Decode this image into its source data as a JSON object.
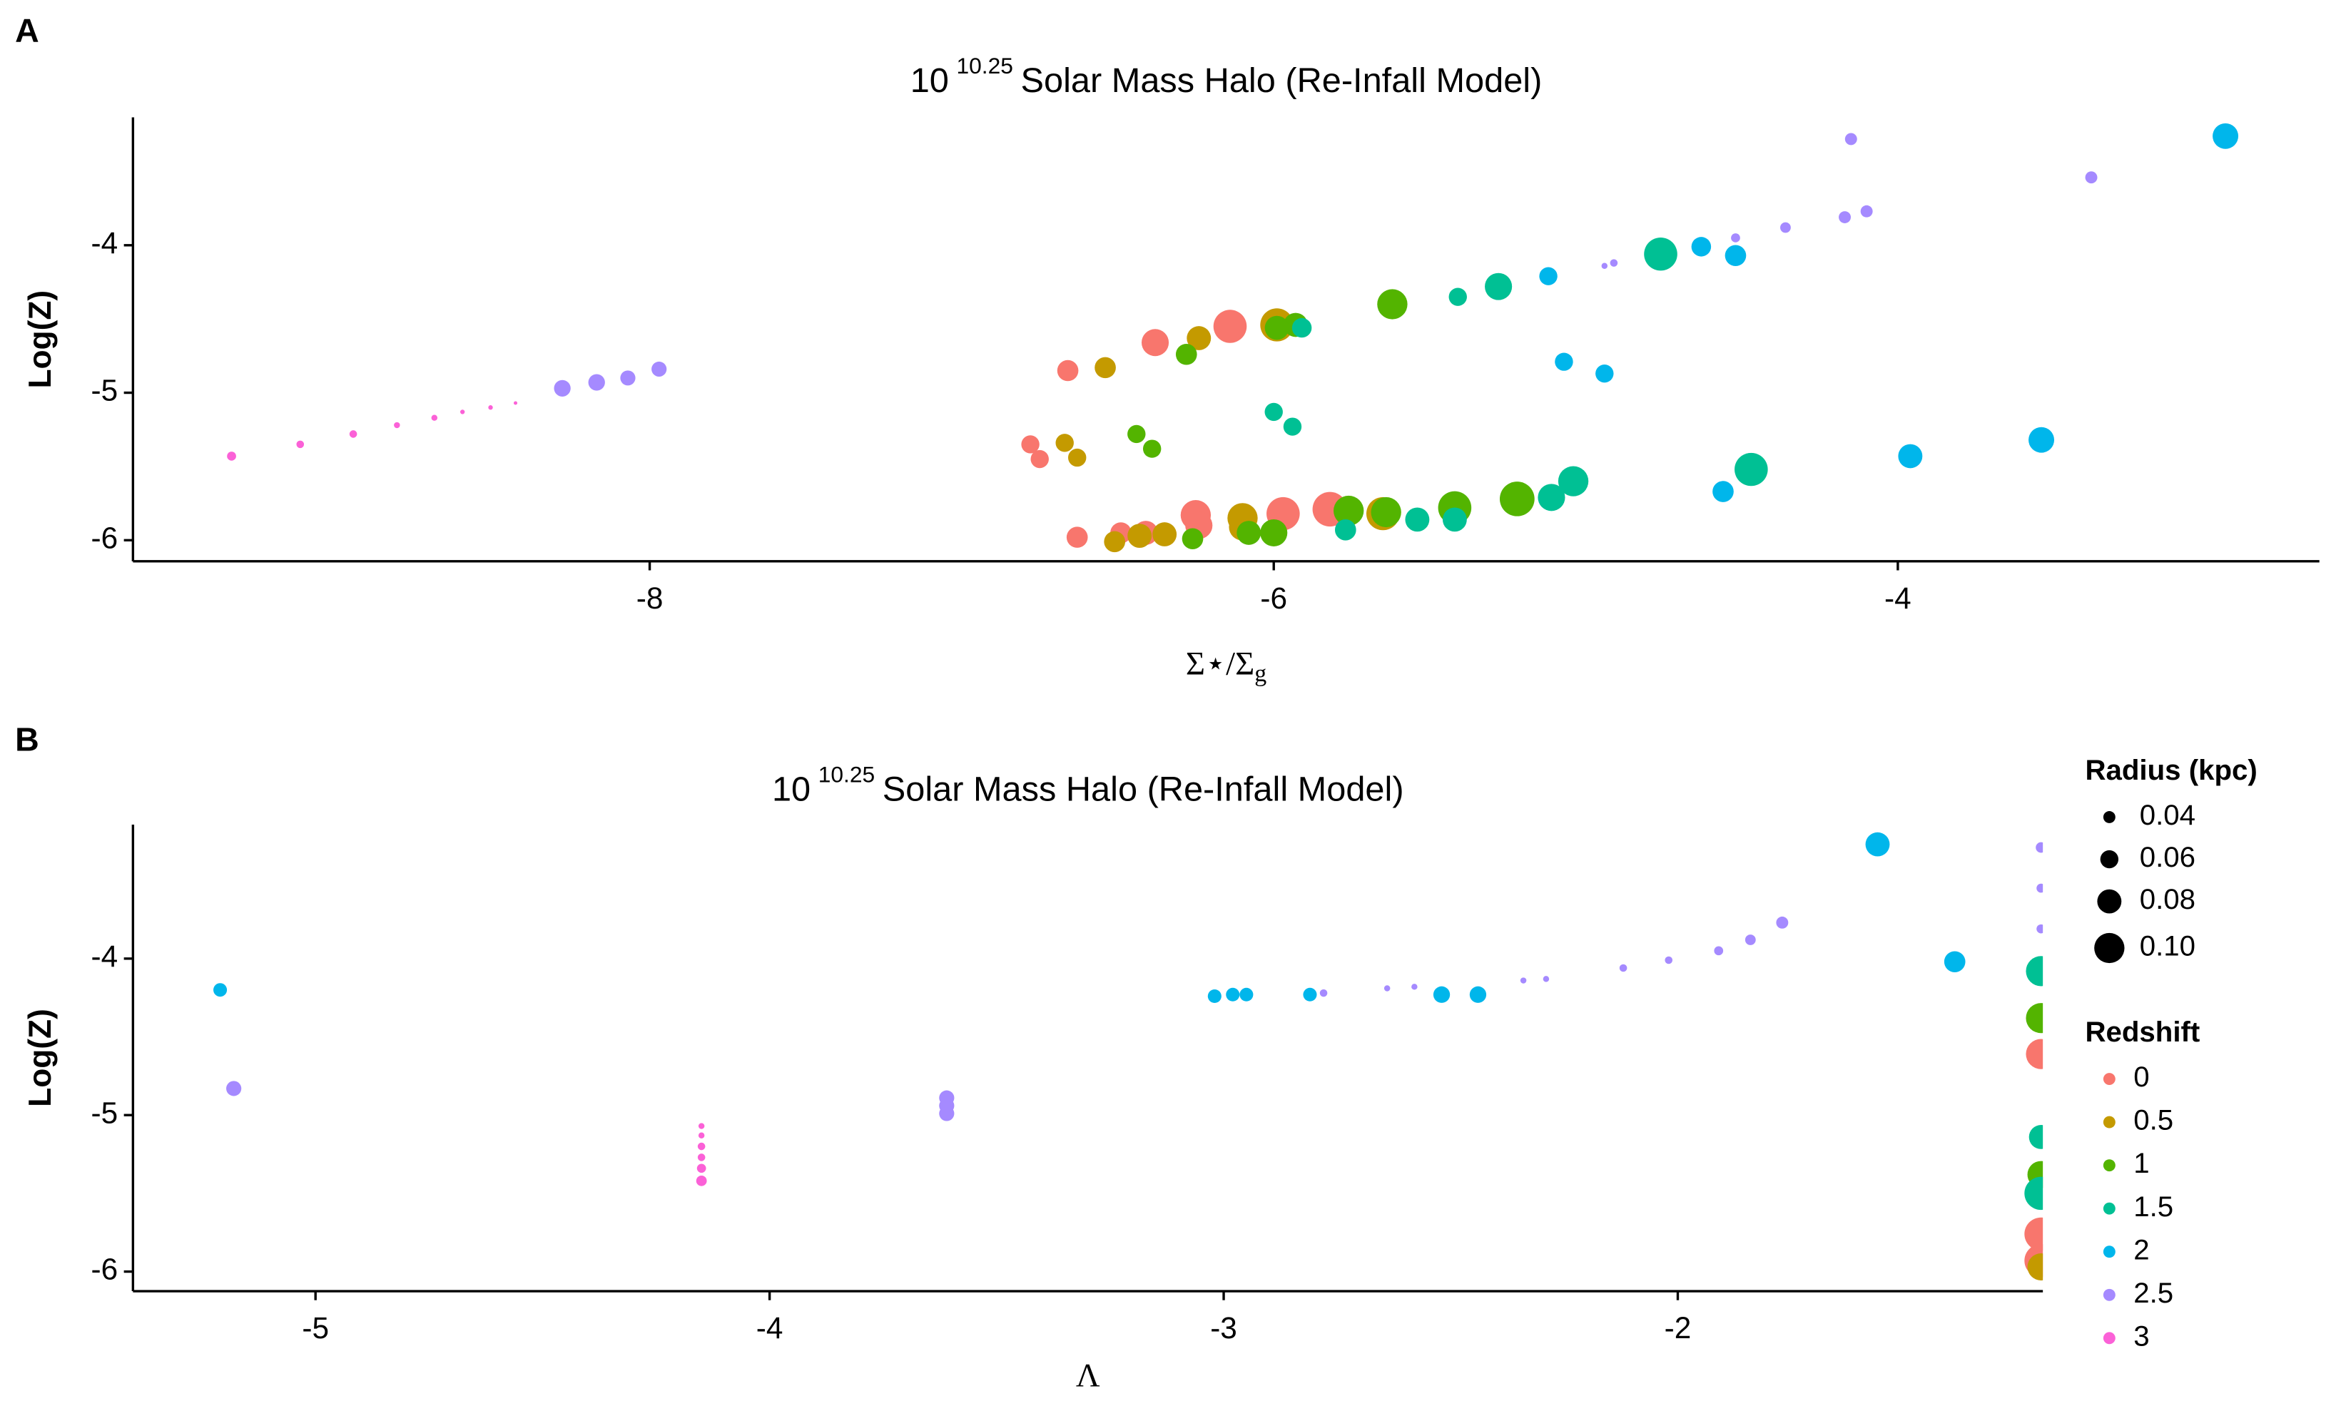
{
  "panel_labels": [
    "A",
    "B"
  ],
  "legend": {
    "size_title": "Radius (kpc)",
    "sizes": [
      0.04,
      0.06,
      0.08,
      {
        "value": 0.1,
        "label": "0.10"
      }
    ],
    "color_title": "Redshift"
  },
  "chart_data": [
    {
      "type": "scatter",
      "title_base": "10",
      "title_exponent": "10.25",
      "title": "Solar Mass Halo (Re-Infall Model)",
      "xlabel": "Σ⋆/Σ",
      "xlabel_subscript": "g",
      "ylabel": "Log(Z)",
      "xlim": [
        -9.656,
        -2.649
      ],
      "ylim": [
        -6.143,
        -3.133
      ],
      "xticks": [
        -8,
        -6,
        -4
      ],
      "yticks": [
        -4,
        -5,
        -6
      ],
      "series": [
        {
          "name": "0",
          "color": "#F8766D",
          "x": [
            -6.14,
            -6.38,
            -6.66,
            -6.78,
            -6.75,
            -5.82,
            -5.97,
            -6.25,
            -6.24,
            -6.41,
            -6.49,
            -6.63
          ],
          "y": [
            -4.55,
            -4.66,
            -4.85,
            -5.35,
            -5.45,
            -5.79,
            -5.82,
            -5.83,
            -5.9,
            -5.95,
            -5.95,
            -5.98
          ],
          "sizes": [
            0.11,
            0.09,
            0.07,
            0.06,
            0.06,
            0.115,
            0.11,
            0.1,
            0.09,
            0.08,
            0.07,
            0.07
          ]
        },
        {
          "name": "0.5",
          "color": "#C49A00",
          "x": [
            -5.99,
            -6.24,
            -6.54,
            -6.67,
            -6.63,
            -5.65,
            -6.1,
            -6.1,
            -6.35,
            -6.43,
            -6.51
          ],
          "y": [
            -4.54,
            -4.63,
            -4.83,
            -5.34,
            -5.44,
            -5.82,
            -5.85,
            -5.91,
            -5.96,
            -5.97,
            -6.01
          ],
          "sizes": [
            0.11,
            0.08,
            0.07,
            0.06,
            0.06,
            0.11,
            0.1,
            0.09,
            0.08,
            0.08,
            0.07
          ]
        },
        {
          "name": "1",
          "color": "#53B400",
          "x": [
            -5.62,
            -5.93,
            -5.99,
            -6.28,
            -6.44,
            -6.39,
            -5.22,
            -5.42,
            -5.64,
            -5.76,
            -6.0,
            -6.08,
            -6.26
          ],
          "y": [
            -4.4,
            -4.54,
            -4.56,
            -4.74,
            -5.28,
            -5.38,
            -5.72,
            -5.78,
            -5.81,
            -5.8,
            -5.95,
            -5.95,
            -5.99
          ],
          "sizes": [
            0.1,
            0.08,
            0.08,
            0.07,
            0.06,
            0.06,
            0.115,
            0.11,
            0.1,
            0.1,
            0.09,
            0.08,
            0.07
          ]
        },
        {
          "name": "1.5",
          "color": "#00C094",
          "x": [
            -4.76,
            -5.28,
            -5.41,
            -5.91,
            -4.47,
            -5.04,
            -5.11,
            -5.54,
            -5.42,
            -5.77,
            -6.0,
            -5.94
          ],
          "y": [
            -4.06,
            -4.28,
            -4.35,
            -4.56,
            -5.52,
            -5.6,
            -5.71,
            -5.86,
            -5.86,
            -5.93,
            -5.13,
            -5.23
          ],
          "sizes": [
            0.11,
            0.09,
            0.06,
            0.065,
            0.11,
            0.1,
            0.09,
            0.08,
            0.08,
            0.07,
            0.06,
            0.06
          ]
        },
        {
          "name": "2",
          "color": "#00B6EB",
          "x": [
            -2.95,
            -4.63,
            -4.52,
            -5.07,
            -4.94,
            -4.56,
            -3.96,
            -3.54,
            -5.12
          ],
          "y": [
            -3.26,
            -4.01,
            -4.07,
            -4.79,
            -4.87,
            -5.67,
            -5.43,
            -5.32,
            -4.21
          ],
          "sizes": [
            0.085,
            0.065,
            0.07,
            0.06,
            0.06,
            0.07,
            0.08,
            0.085,
            0.06
          ]
        },
        {
          "name": "2.5",
          "color": "#A58AFF",
          "x": [
            -8.28,
            -8.17,
            -8.07,
            -7.97,
            -4.15,
            -3.38,
            -4.1,
            -4.17,
            -4.36,
            -4.52,
            -4.91,
            -4.94
          ],
          "y": [
            -4.97,
            -4.93,
            -4.9,
            -4.84,
            -3.28,
            -3.54,
            -3.77,
            -3.81,
            -3.88,
            -3.95,
            -4.12,
            -4.14
          ],
          "sizes": [
            0.055,
            0.055,
            0.05,
            0.05,
            0.04,
            0.04,
            0.04,
            0.04,
            0.035,
            0.03,
            0.025,
            0.02
          ]
        },
        {
          "name": "3",
          "color": "#FB61D7",
          "x": [
            -9.34,
            -9.12,
            -8.95,
            -8.81,
            -8.69,
            -8.6,
            -8.51,
            -8.43
          ],
          "y": [
            -5.43,
            -5.35,
            -5.28,
            -5.22,
            -5.17,
            -5.13,
            -5.1,
            -5.07
          ],
          "sizes": [
            0.03,
            0.025,
            0.025,
            0.02,
            0.02,
            0.015,
            0.015,
            0.012
          ]
        }
      ]
    },
    {
      "type": "scatter",
      "title_base": "10",
      "title_exponent": "10.25",
      "title": "Solar Mass Halo (Re-Infall Model)",
      "xlabel": "Λ",
      "ylabel": "Log(Z)",
      "xlim": [
        -5.402,
        -1.196
      ],
      "ylim": [
        -6.125,
        -3.144
      ],
      "xticks": [
        -5,
        -4,
        -3,
        -2
      ],
      "yticks": [
        -4,
        -5,
        -6
      ],
      "series": [
        {
          "name": "0",
          "color": "#F8766D",
          "x": [
            -1.2,
            -1.2,
            -1.2
          ],
          "y": [
            -4.61,
            -5.76,
            -5.93
          ],
          "sizes": [
            0.1,
            0.11,
            0.11
          ]
        },
        {
          "name": "0.5",
          "color": "#C49A00",
          "x": [
            -1.2
          ],
          "y": [
            -5.97
          ],
          "sizes": [
            0.09
          ]
        },
        {
          "name": "1",
          "color": "#53B400",
          "x": [
            -1.2,
            -1.2
          ],
          "y": [
            -4.38,
            -5.38
          ],
          "sizes": [
            0.1,
            0.09
          ]
        },
        {
          "name": "1.5",
          "color": "#00C094",
          "x": [
            -1.2,
            -1.2,
            -1.2
          ],
          "y": [
            -4.08,
            -5.14,
            -5.5
          ],
          "sizes": [
            0.1,
            0.08,
            0.11
          ]
        },
        {
          "name": "2",
          "color": "#00B6EB",
          "x": [
            -5.21,
            -1.56,
            -1.39,
            -3.02,
            -2.98,
            -2.95,
            -2.81,
            -2.52,
            -2.44
          ],
          "y": [
            -4.2,
            -3.27,
            -4.02,
            -4.24,
            -4.23,
            -4.23,
            -4.23,
            -4.23,
            -4.23
          ],
          "sizes": [
            0.045,
            0.08,
            0.07,
            0.045,
            0.045,
            0.045,
            0.045,
            0.055,
            0.055
          ]
        },
        {
          "name": "2.5",
          "color": "#A58AFF",
          "x": [
            -5.18,
            -3.61,
            -3.61,
            -3.61,
            -2.78,
            -2.64,
            -2.58,
            -2.34,
            -2.29,
            -2.12,
            -2.02,
            -1.91,
            -1.84,
            -1.77,
            -1.2,
            -1.2,
            -1.2
          ],
          "y": [
            -4.83,
            -4.89,
            -4.94,
            -4.99,
            -4.22,
            -4.19,
            -4.18,
            -4.14,
            -4.13,
            -4.06,
            -4.01,
            -3.95,
            -3.88,
            -3.77,
            -3.29,
            -3.55,
            -3.81
          ],
          "sizes": [
            0.05,
            0.05,
            0.05,
            0.05,
            0.025,
            0.02,
            0.02,
            0.02,
            0.02,
            0.025,
            0.025,
            0.03,
            0.035,
            0.04,
            0.035,
            0.03,
            0.03
          ]
        },
        {
          "name": "3",
          "color": "#FB61D7",
          "x": [
            -4.15,
            -4.15,
            -4.15,
            -4.15,
            -4.15,
            -4.15
          ],
          "y": [
            -5.07,
            -5.13,
            -5.2,
            -5.27,
            -5.34,
            -5.42
          ],
          "sizes": [
            0.02,
            0.02,
            0.025,
            0.025,
            0.03,
            0.035
          ]
        }
      ]
    }
  ]
}
